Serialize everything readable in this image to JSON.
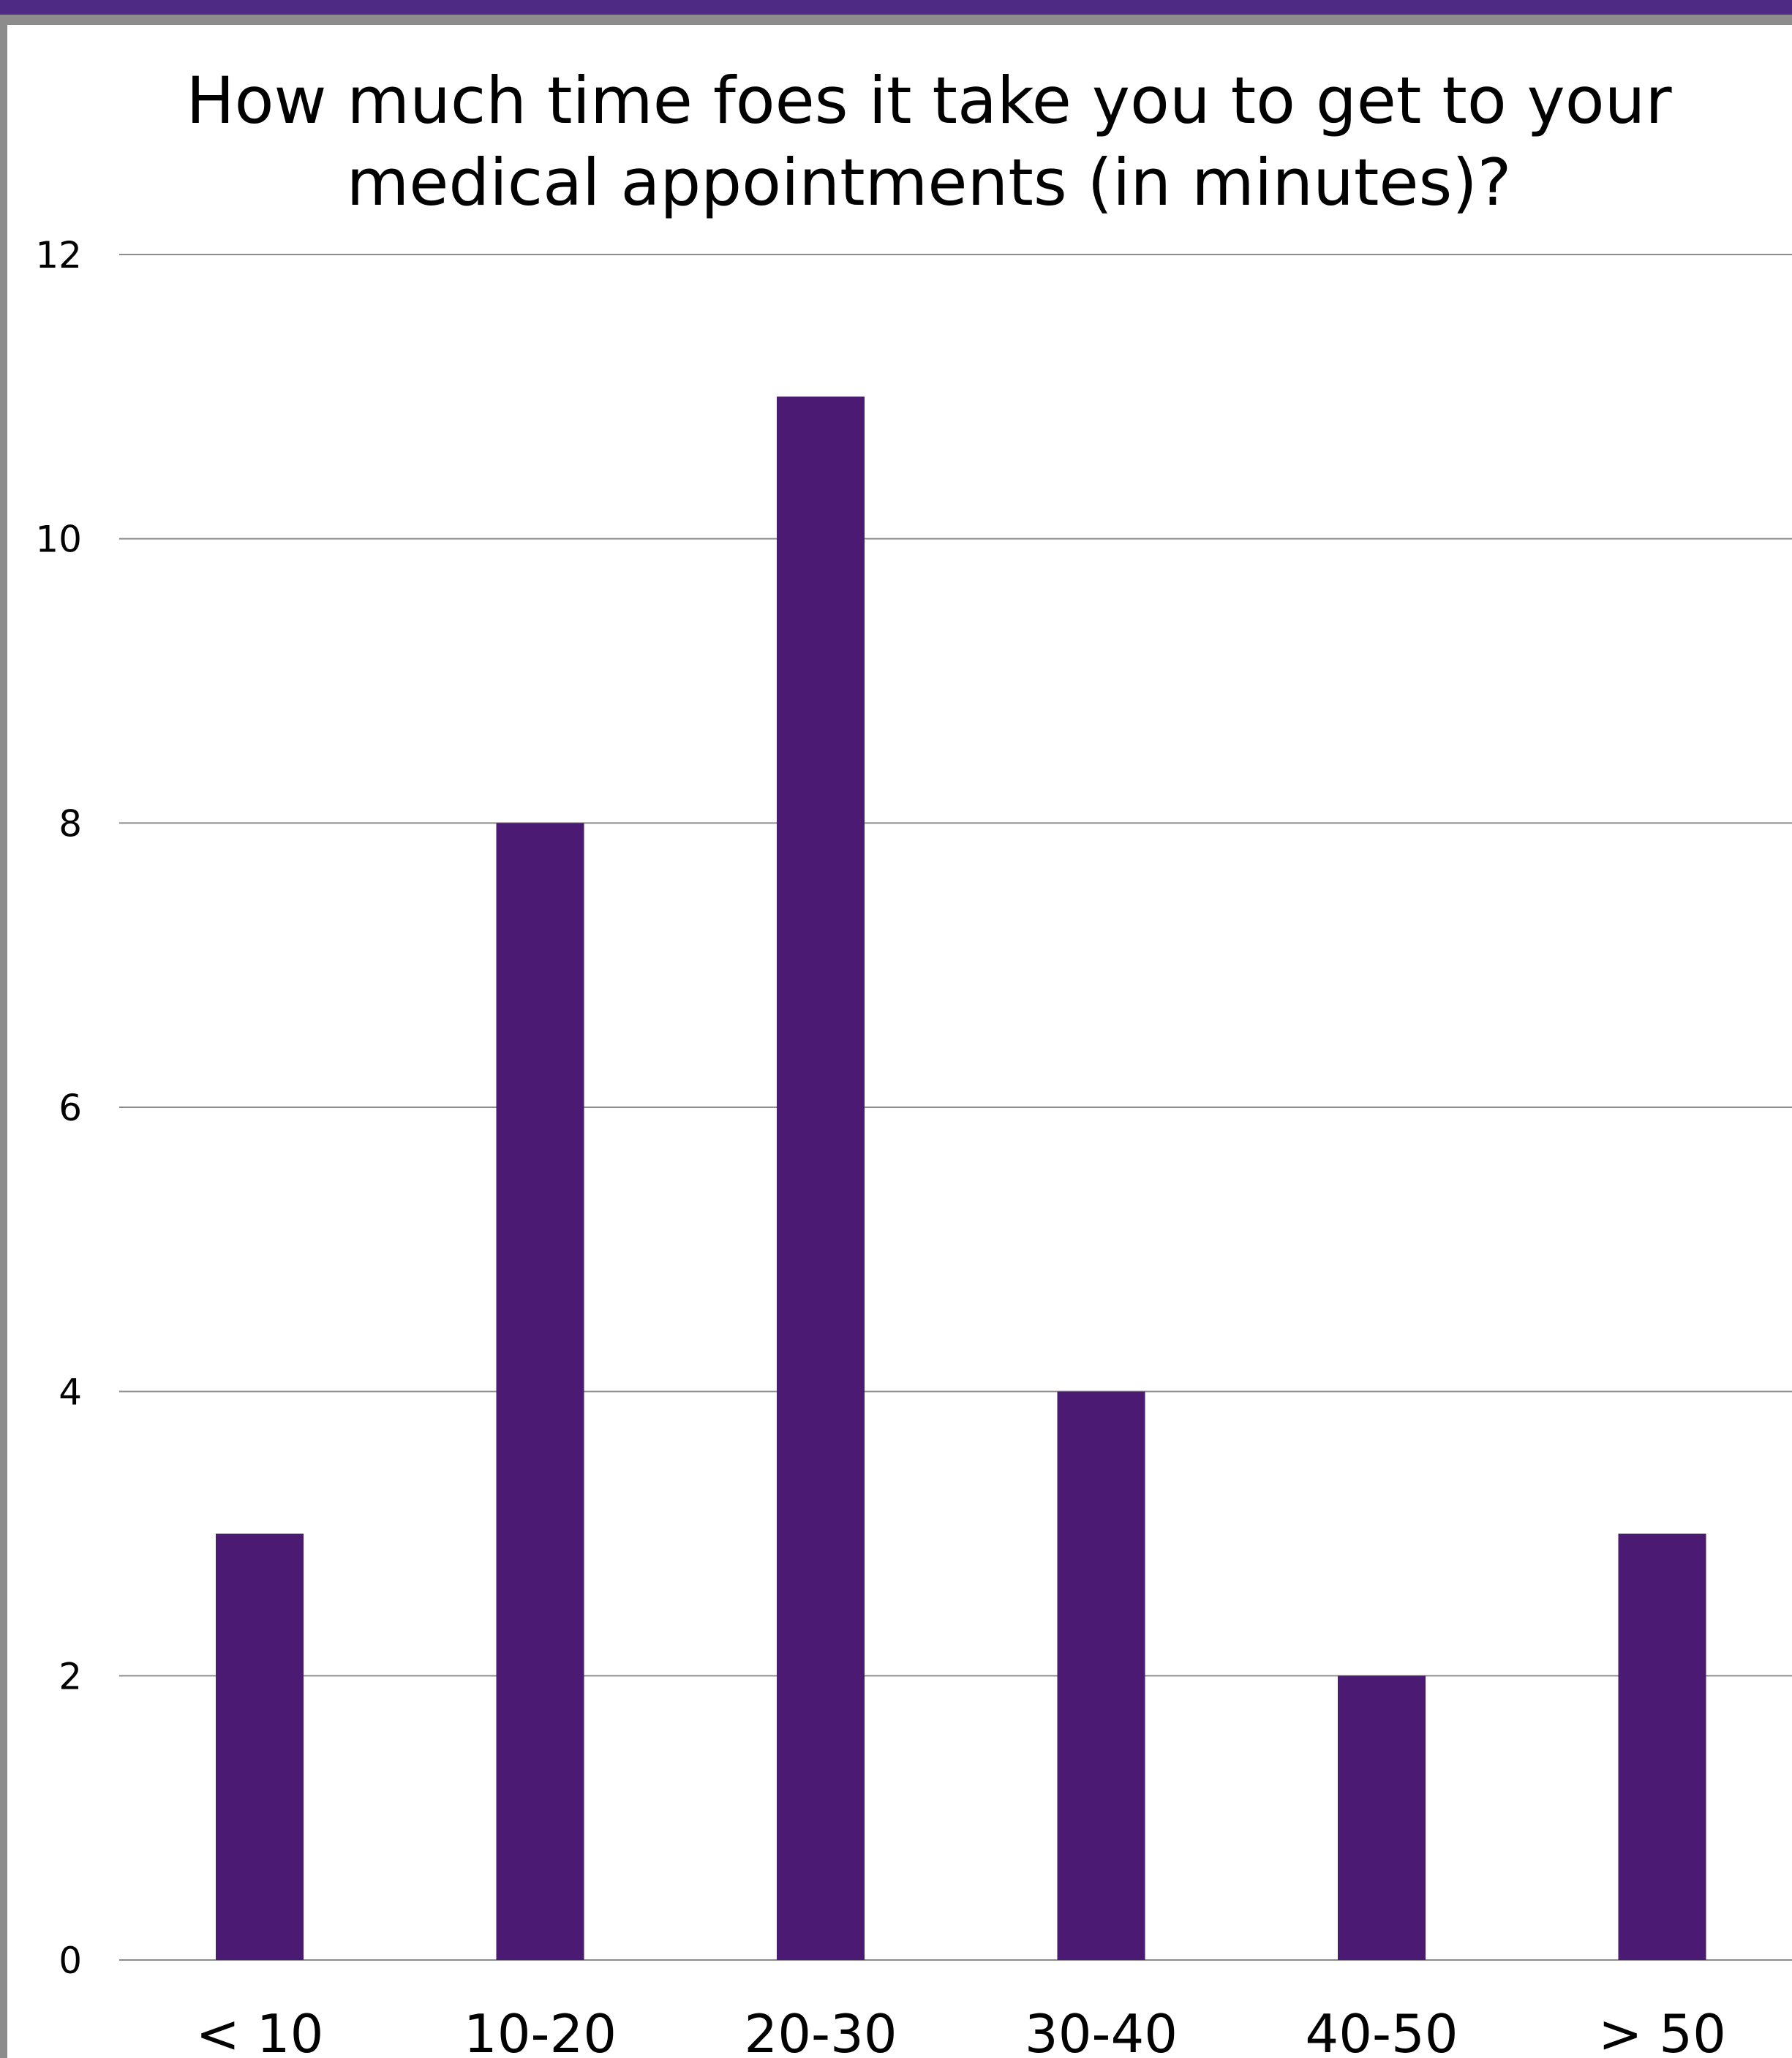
{
  "chart_data": {
    "type": "bar",
    "title_lines": [
      "How much time foes it take you to get to your",
      "medical appointments (in minutes)?"
    ],
    "categories": [
      "< 10",
      "10-20",
      "20-30",
      "30-40",
      "40-50",
      "> 50"
    ],
    "values": [
      3,
      8,
      11,
      4,
      2,
      3
    ],
    "xlabel": "",
    "ylabel": "",
    "ylim": [
      0,
      12
    ],
    "yticks": [
      0,
      2,
      4,
      6,
      8,
      10,
      12
    ],
    "grid": true,
    "legend": "none",
    "bar_color": "#4b1a73",
    "grid_color": "#8c8c8c"
  },
  "frame": {
    "accent_color": "#4e2a84",
    "border_color": "#8c8c8c"
  }
}
